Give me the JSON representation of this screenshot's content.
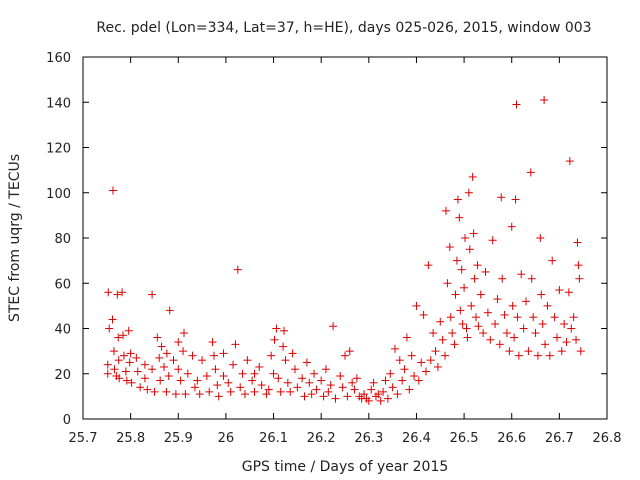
{
  "chart_data": {
    "type": "scatter",
    "title": "Rec. pdel (Lon=334, Lat=37, h=HE), days 025-026, 2015, window 003",
    "xlabel": "GPS time / Days of year 2015",
    "ylabel": "STEC from uqrg / TECUs",
    "xlim": [
      25.7,
      26.8
    ],
    "ylim": [
      0,
      160
    ],
    "x_ticks": [
      "25.7",
      "25.8",
      "25.9",
      "26",
      "26.1",
      "26.2",
      "26.3",
      "26.4",
      "26.5",
      "26.6",
      "26.7",
      "26.8"
    ],
    "y_ticks": [
      "0",
      "20",
      "40",
      "60",
      "80",
      "100",
      "120",
      "140",
      "160"
    ],
    "grid": false,
    "marker": "+",
    "color": "#dd0000",
    "series": [
      {
        "name": "STEC",
        "points": [
          [
            25.752,
            20
          ],
          [
            25.752,
            24
          ],
          [
            25.753,
            56
          ],
          [
            25.755,
            40
          ],
          [
            25.762,
            44
          ],
          [
            25.763,
            101
          ],
          [
            25.765,
            30
          ],
          [
            25.766,
            22
          ],
          [
            25.77,
            19
          ],
          [
            25.772,
            55
          ],
          [
            25.774,
            36
          ],
          [
            25.775,
            26
          ],
          [
            25.776,
            18
          ],
          [
            25.782,
            56
          ],
          [
            25.784,
            37
          ],
          [
            25.786,
            28
          ],
          [
            25.79,
            21
          ],
          [
            25.792,
            17
          ],
          [
            25.796,
            39
          ],
          [
            25.798,
            25
          ],
          [
            25.8,
            29
          ],
          [
            25.802,
            16
          ],
          [
            25.812,
            27
          ],
          [
            25.815,
            21
          ],
          [
            25.82,
            14
          ],
          [
            25.83,
            24
          ],
          [
            25.83,
            18
          ],
          [
            25.835,
            13
          ],
          [
            25.845,
            22
          ],
          [
            25.845,
            55
          ],
          [
            25.85,
            12
          ],
          [
            25.856,
            36
          ],
          [
            25.86,
            27
          ],
          [
            25.862,
            17
          ],
          [
            25.865,
            32
          ],
          [
            25.87,
            23
          ],
          [
            25.875,
            12
          ],
          [
            25.876,
            29
          ],
          [
            25.88,
            19
          ],
          [
            25.882,
            48
          ],
          [
            25.89,
            26
          ],
          [
            25.895,
            11
          ],
          [
            25.9,
            34
          ],
          [
            25.9,
            22
          ],
          [
            25.905,
            17
          ],
          [
            25.91,
            30
          ],
          [
            25.912,
            38
          ],
          [
            25.915,
            11
          ],
          [
            25.92,
            20
          ],
          [
            25.93,
            28
          ],
          [
            25.935,
            14
          ],
          [
            25.94,
            17
          ],
          [
            25.945,
            11
          ],
          [
            25.95,
            26
          ],
          [
            25.96,
            19
          ],
          [
            25.965,
            12
          ],
          [
            25.972,
            34
          ],
          [
            25.975,
            28
          ],
          [
            25.978,
            22
          ],
          [
            25.982,
            15
          ],
          [
            25.985,
            10
          ],
          [
            25.995,
            29
          ],
          [
            25.995,
            19
          ],
          [
            26.005,
            16
          ],
          [
            26.01,
            12
          ],
          [
            26.015,
            24
          ],
          [
            26.02,
            33
          ],
          [
            26.025,
            66
          ],
          [
            26.03,
            14
          ],
          [
            26.035,
            20
          ],
          [
            26.04,
            11
          ],
          [
            26.045,
            26
          ],
          [
            26.055,
            17
          ],
          [
            26.06,
            12
          ],
          [
            26.06,
            20
          ],
          [
            26.07,
            23
          ],
          [
            26.075,
            15
          ],
          [
            26.085,
            11
          ],
          [
            26.09,
            13
          ],
          [
            26.095,
            28
          ],
          [
            26.1,
            20
          ],
          [
            26.102,
            35
          ],
          [
            26.106,
            40
          ],
          [
            26.11,
            18
          ],
          [
            26.115,
            12
          ],
          [
            26.12,
            32
          ],
          [
            26.122,
            39
          ],
          [
            26.125,
            26
          ],
          [
            26.13,
            16
          ],
          [
            26.135,
            12
          ],
          [
            26.14,
            29
          ],
          [
            26.145,
            22
          ],
          [
            26.15,
            14
          ],
          [
            26.16,
            18
          ],
          [
            26.165,
            10
          ],
          [
            26.17,
            25
          ],
          [
            26.175,
            16
          ],
          [
            26.18,
            11
          ],
          [
            26.185,
            20
          ],
          [
            26.19,
            13
          ],
          [
            26.2,
            17
          ],
          [
            26.205,
            10
          ],
          [
            26.21,
            22
          ],
          [
            26.215,
            12
          ],
          [
            26.22,
            15
          ],
          [
            26.225,
            41
          ],
          [
            26.23,
            9
          ],
          [
            26.24,
            19
          ],
          [
            26.245,
            14
          ],
          [
            26.25,
            28
          ],
          [
            26.255,
            10
          ],
          [
            26.26,
            30
          ],
          [
            26.265,
            16
          ],
          [
            26.27,
            13
          ],
          [
            26.275,
            18
          ],
          [
            26.28,
            10
          ],
          [
            26.285,
            9
          ],
          [
            26.29,
            11
          ],
          [
            26.295,
            9
          ],
          [
            26.3,
            8
          ],
          [
            26.305,
            13
          ],
          [
            26.31,
            16
          ],
          [
            26.315,
            10
          ],
          [
            26.32,
            11
          ],
          [
            26.325,
            8
          ],
          [
            26.33,
            12
          ],
          [
            26.335,
            17
          ],
          [
            26.34,
            9
          ],
          [
            26.345,
            20
          ],
          [
            26.35,
            14
          ],
          [
            26.355,
            31
          ],
          [
            26.36,
            11
          ],
          [
            26.365,
            26
          ],
          [
            26.37,
            17
          ],
          [
            26.375,
            22
          ],
          [
            26.38,
            36
          ],
          [
            26.385,
            13
          ],
          [
            26.39,
            28
          ],
          [
            26.395,
            19
          ],
          [
            26.4,
            50
          ],
          [
            26.405,
            17
          ],
          [
            26.41,
            25
          ],
          [
            26.415,
            46
          ],
          [
            26.42,
            21
          ],
          [
            26.425,
            68
          ],
          [
            26.43,
            26
          ],
          [
            26.435,
            38
          ],
          [
            26.44,
            30
          ],
          [
            26.445,
            23
          ],
          [
            26.45,
            43
          ],
          [
            26.455,
            35
          ],
          [
            26.46,
            28
          ],
          [
            26.462,
            92
          ],
          [
            26.465,
            60
          ],
          [
            26.47,
            76
          ],
          [
            26.472,
            45
          ],
          [
            26.475,
            38
          ],
          [
            26.48,
            33
          ],
          [
            26.482,
            55
          ],
          [
            26.485,
            70
          ],
          [
            26.487,
            97
          ],
          [
            26.49,
            89
          ],
          [
            26.492,
            48
          ],
          [
            26.495,
            66
          ],
          [
            26.497,
            42
          ],
          [
            26.5,
            58
          ],
          [
            26.502,
            80
          ],
          [
            26.505,
            40
          ],
          [
            26.507,
            36
          ],
          [
            26.51,
            100
          ],
          [
            26.512,
            75
          ],
          [
            26.515,
            50
          ],
          [
            26.518,
            107
          ],
          [
            26.52,
            82
          ],
          [
            26.522,
            62
          ],
          [
            26.525,
            45
          ],
          [
            26.528,
            68
          ],
          [
            26.53,
            41
          ],
          [
            26.535,
            55
          ],
          [
            26.54,
            38
          ],
          [
            26.545,
            65
          ],
          [
            26.55,
            47
          ],
          [
            26.555,
            35
          ],
          [
            26.56,
            79
          ],
          [
            26.565,
            42
          ],
          [
            26.57,
            53
          ],
          [
            26.575,
            33
          ],
          [
            26.578,
            98
          ],
          [
            26.58,
            62
          ],
          [
            26.585,
            46
          ],
          [
            26.59,
            38
          ],
          [
            26.595,
            30
          ],
          [
            26.6,
            85
          ],
          [
            26.602,
            50
          ],
          [
            26.605,
            36
          ],
          [
            26.608,
            97
          ],
          [
            26.61,
            139
          ],
          [
            26.612,
            45
          ],
          [
            26.615,
            28
          ],
          [
            26.62,
            64
          ],
          [
            26.625,
            40
          ],
          [
            26.63,
            52
          ],
          [
            26.635,
            30
          ],
          [
            26.64,
            109
          ],
          [
            26.642,
            62
          ],
          [
            26.645,
            45
          ],
          [
            26.65,
            38
          ],
          [
            26.655,
            28
          ],
          [
            26.66,
            80
          ],
          [
            26.662,
            55
          ],
          [
            26.665,
            42
          ],
          [
            26.668,
            141
          ],
          [
            26.67,
            33
          ],
          [
            26.675,
            50
          ],
          [
            26.68,
            28
          ],
          [
            26.685,
            70
          ],
          [
            26.69,
            45
          ],
          [
            26.695,
            36
          ],
          [
            26.7,
            57
          ],
          [
            26.705,
            30
          ],
          [
            26.71,
            42
          ],
          [
            26.715,
            34
          ],
          [
            26.72,
            56
          ],
          [
            26.722,
            114
          ],
          [
            26.725,
            40
          ],
          [
            26.73,
            45
          ],
          [
            26.735,
            35
          ],
          [
            26.738,
            78
          ],
          [
            26.74,
            68
          ],
          [
            26.742,
            62
          ],
          [
            26.745,
            30
          ]
        ]
      }
    ]
  }
}
